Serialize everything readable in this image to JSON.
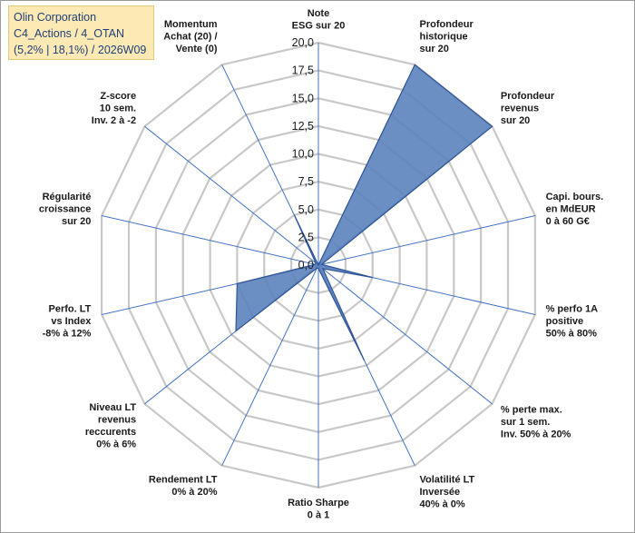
{
  "header": {
    "line1": "Olin Corporation",
    "line2": "C4_Actions / 4_OTAN",
    "line3": "(5,2% | 18,1%) / 2026W09"
  },
  "colors": {
    "series_fill": "#5b82bd",
    "series_stroke": "#2f5597",
    "grid": "#c8c8c8",
    "spokes": "#4472c4"
  },
  "chart_data": {
    "type": "radar",
    "rmin": 0,
    "rmax": 20,
    "tick_values": [
      0,
      2.5,
      5,
      7.5,
      10,
      12.5,
      15,
      17.5,
      20
    ],
    "tick_labels": [
      "0,0",
      "2,5",
      "5,0",
      "7,5",
      "10,0",
      "12,5",
      "15,0",
      "17,5",
      "20,0"
    ],
    "axes": [
      {
        "label": [
          "Note",
          "ESG sur 20"
        ],
        "value": 0
      },
      {
        "label": [
          "Profondeur",
          "historique",
          "sur 20"
        ],
        "value": 20
      },
      {
        "label": [
          "Profondeur",
          "revenus",
          "sur 20"
        ],
        "value": 20
      },
      {
        "label": [
          "Capi. bours.",
          "en MdEUR",
          "0 à 60 G€"
        ],
        "value": 0.3
      },
      {
        "label": [
          "% perfo 1A",
          "positive",
          "50% à 80%"
        ],
        "value": 5
      },
      {
        "label": [
          "% perte max.",
          "sur 1 sem.",
          "Inv. 50% à 20%"
        ],
        "value": 0.5
      },
      {
        "label": [
          "Volatilité LT",
          "Inversée",
          "40% à 0%"
        ],
        "value": 9.5
      },
      {
        "label": [
          "Ratio Sharpe",
          "0 à 1"
        ],
        "value": 0.3
      },
      {
        "label": [
          "Rendement LT",
          "0% à 20%"
        ],
        "value": 0.3
      },
      {
        "label": [
          "Niveau LT",
          "revenus",
          "reccurents",
          "0% à 6%"
        ],
        "value": 9.5
      },
      {
        "label": [
          "Perfo. LT",
          "vs Index",
          "-8% à 12%"
        ],
        "value": 7.5
      },
      {
        "label": [
          "Régularité",
          "croissance",
          "sur 20"
        ],
        "value": 0.3
      },
      {
        "label": [
          "Z-score",
          "10 sem.",
          "Inv. 2 à -2"
        ],
        "value": 0.3
      },
      {
        "label": [
          "Momentum",
          "Achat (20) /",
          "Vente (0)"
        ],
        "value": 5
      }
    ]
  }
}
